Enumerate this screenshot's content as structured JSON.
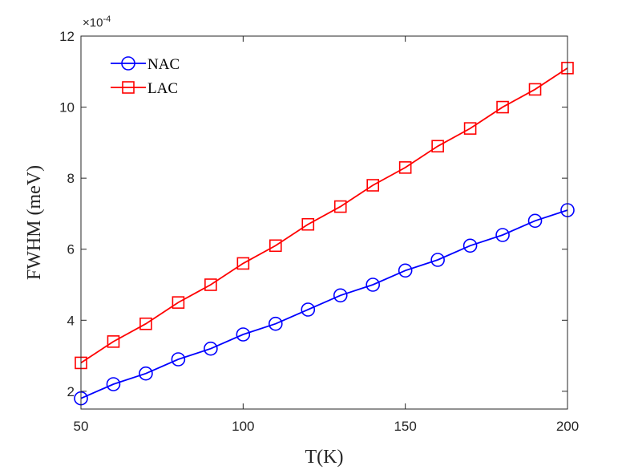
{
  "chart_data": {
    "type": "line",
    "title": "",
    "xlabel": "T(K)",
    "ylabel": "FWHM (meV)",
    "y_exponent_label": "×10",
    "y_exponent_power": "-4",
    "xlim": [
      50,
      200
    ],
    "ylim": [
      1.5,
      12
    ],
    "xticks": [
      50,
      100,
      150,
      200
    ],
    "yticks": [
      2,
      4,
      6,
      8,
      10,
      12
    ],
    "legend_location": "top-left",
    "x": [
      50,
      60,
      70,
      80,
      90,
      100,
      110,
      120,
      130,
      140,
      150,
      160,
      170,
      180,
      190,
      200
    ],
    "series": [
      {
        "name": "NAC",
        "color": "#0000ff",
        "marker": "circle",
        "values": [
          1.8,
          2.2,
          2.5,
          2.9,
          3.2,
          3.6,
          3.9,
          4.3,
          4.7,
          5.0,
          5.4,
          5.7,
          6.1,
          6.4,
          6.8,
          7.1
        ]
      },
      {
        "name": "LAC",
        "color": "#ff0000",
        "marker": "square",
        "values": [
          2.8,
          3.4,
          3.9,
          4.5,
          5.0,
          5.6,
          6.1,
          6.7,
          7.2,
          7.8,
          8.3,
          8.9,
          9.4,
          10.0,
          10.5,
          11.1
        ]
      }
    ]
  }
}
